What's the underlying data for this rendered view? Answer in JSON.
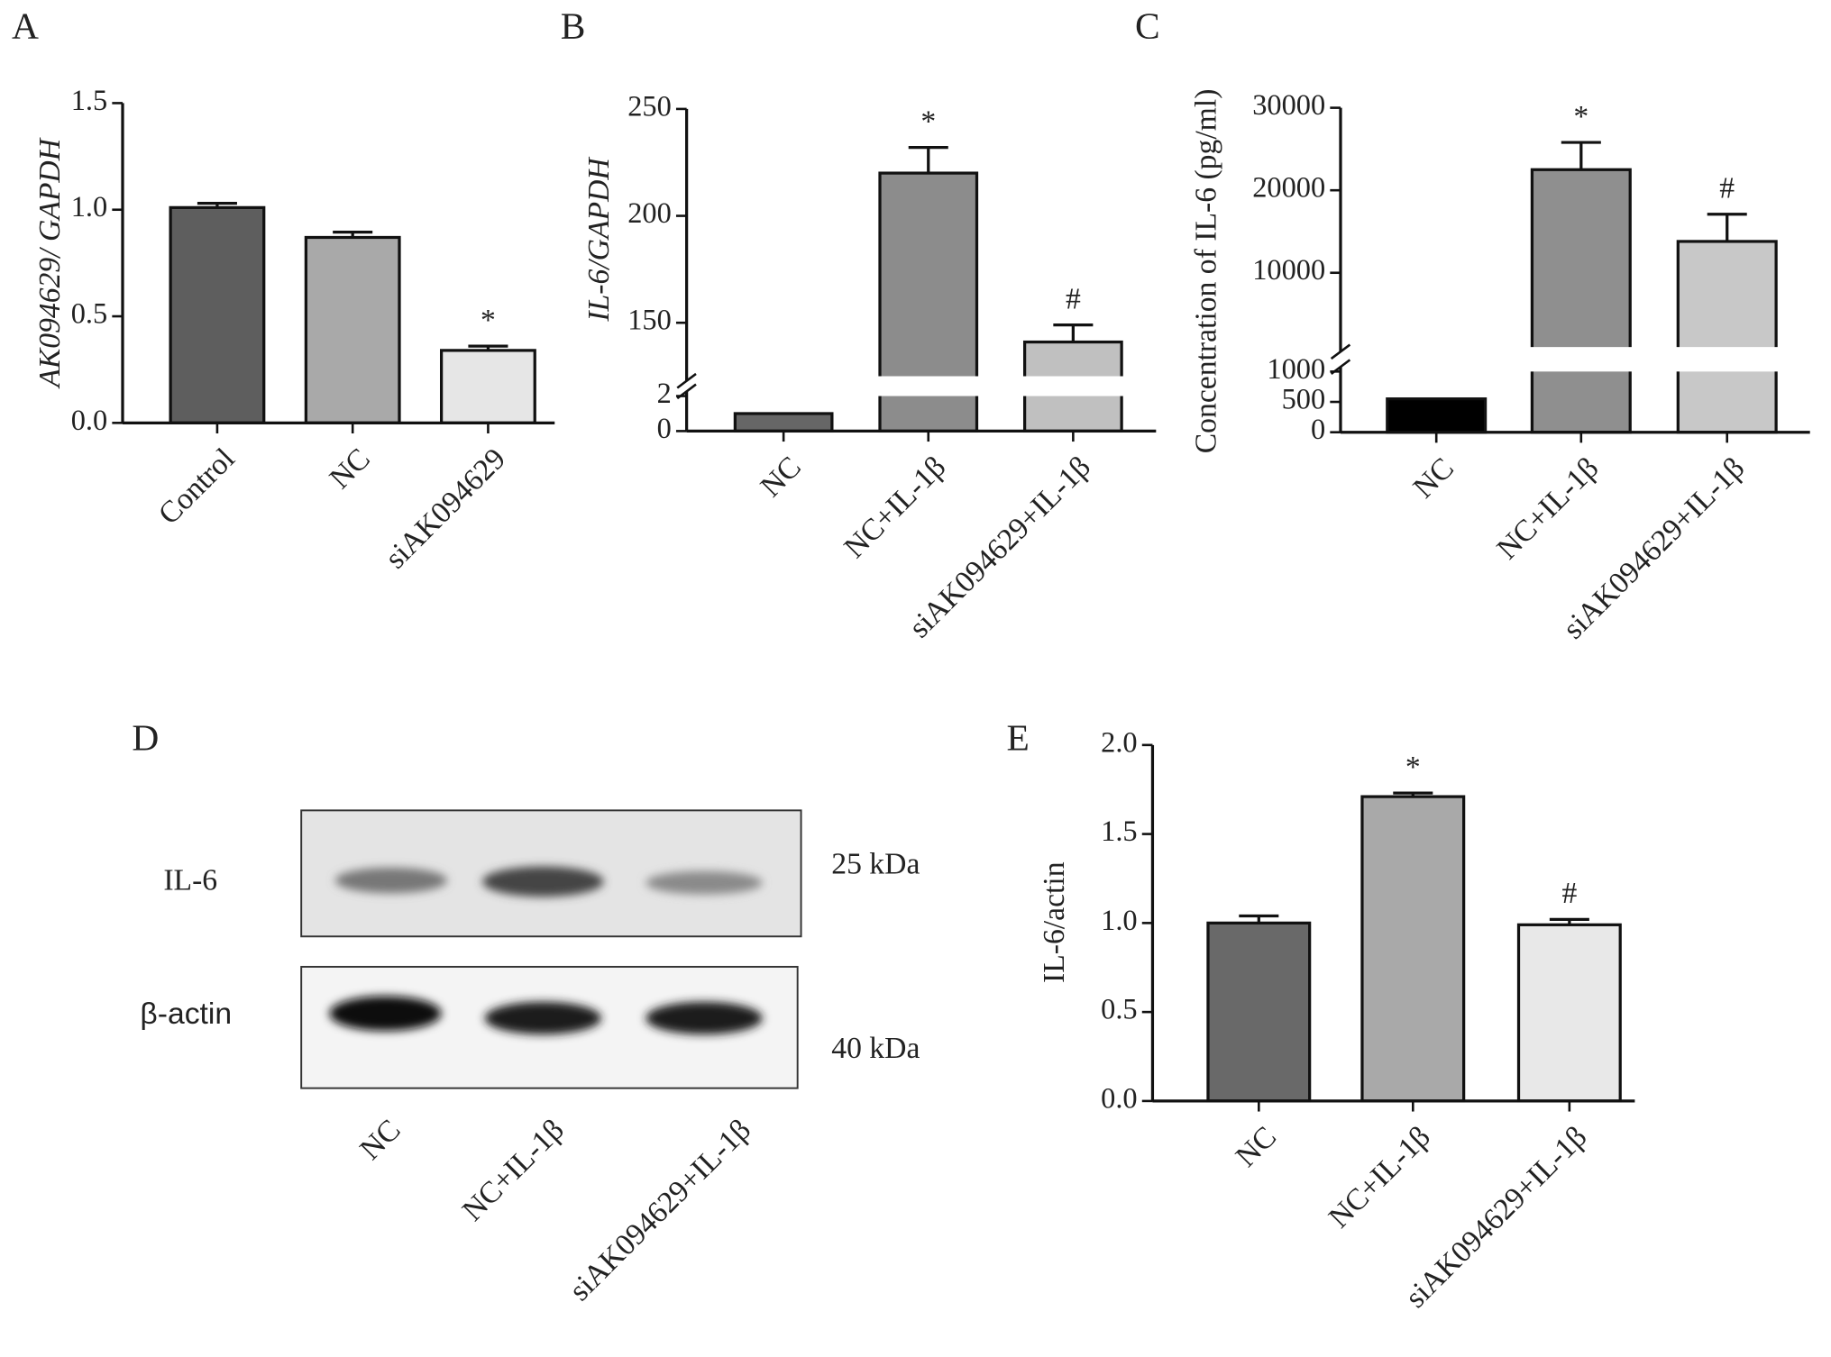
{
  "chart_data": [
    {
      "type": "bar",
      "panel": "A",
      "y_label": "AK094629/ GAPDH",
      "categories": [
        "Control",
        "NC",
        "siAK094629"
      ],
      "values": [
        1.01,
        0.87,
        0.34
      ],
      "errors": [
        0.02,
        0.025,
        0.02
      ],
      "colors": [
        "#5e5e5e",
        "#a9a9a9",
        "#e6e6e6"
      ],
      "annotations": [
        null,
        null,
        "*"
      ],
      "ylim": [
        0,
        1.5
      ],
      "yticks": [
        {
          "value": 0,
          "label": "0.0"
        },
        {
          "value": 0.5,
          "label": "0.5"
        },
        {
          "value": 1,
          "label": "1.0"
        },
        {
          "value": 1.5,
          "label": "1.5"
        }
      ]
    },
    {
      "type": "bar",
      "panel": "B",
      "y_label": "IL-6/GAPDH",
      "categories": [
        "NC",
        "NC+IL-1β",
        "siAK094629+IL-1β"
      ],
      "values": [
        1,
        220,
        141
      ],
      "errors": [
        0,
        12,
        8
      ],
      "colors": [
        "#666666",
        "#8c8c8c",
        "#c0c0c0"
      ],
      "annotations": [
        null,
        "*",
        "#"
      ],
      "ylim": [
        0,
        250
      ],
      "axis_break": [
        2,
        125
      ],
      "yticks": [
        0,
        2,
        150,
        200,
        250
      ]
    },
    {
      "type": "bar",
      "panel": "C",
      "y_label": "Concentration of IL-6 (pg/ml)",
      "categories": [
        "NC",
        "NC+IL-1β",
        "siAK094629+IL-1β"
      ],
      "values": [
        550,
        22500,
        13800
      ],
      "errors": [
        0,
        3300,
        3300
      ],
      "colors": [
        "#000000",
        "#8f8f8f",
        "#c8c8c8"
      ],
      "annotations": [
        null,
        "*",
        "#"
      ],
      "ylim": [
        0,
        30000
      ],
      "axis_break": [
        1000,
        1000
      ],
      "yticks": [
        0,
        500,
        1000,
        10000,
        20000,
        30000
      ]
    },
    {
      "type": "bar",
      "panel": "E",
      "y_label": "IL-6/actin",
      "categories": [
        "NC",
        "NC+IL-1β",
        "siAK094629+IL-1β"
      ],
      "values": [
        1.0,
        1.71,
        0.99
      ],
      "errors": [
        0.04,
        0.02,
        0.03
      ],
      "colors": [
        "#696969",
        "#a9a9a9",
        "#e8e8e8"
      ],
      "annotations": [
        null,
        "*",
        "#"
      ],
      "ylim": [
        0,
        2
      ],
      "yticks": [
        {
          "value": 0,
          "label": "0.0"
        },
        {
          "value": 0.5,
          "label": "0.5"
        },
        {
          "value": 1,
          "label": "1.0"
        },
        {
          "value": 1.5,
          "label": "1.5"
        },
        {
          "value": 2,
          "label": "2.0"
        }
      ]
    }
  ],
  "blot": {
    "panel": "D",
    "rows": [
      {
        "label": "IL-6",
        "size": "25 kDa"
      },
      {
        "label": "β-actin",
        "size": "40 kDa"
      }
    ],
    "lanes": [
      "NC",
      "NC+IL-1β",
      "siAK094629+IL-1β"
    ]
  }
}
